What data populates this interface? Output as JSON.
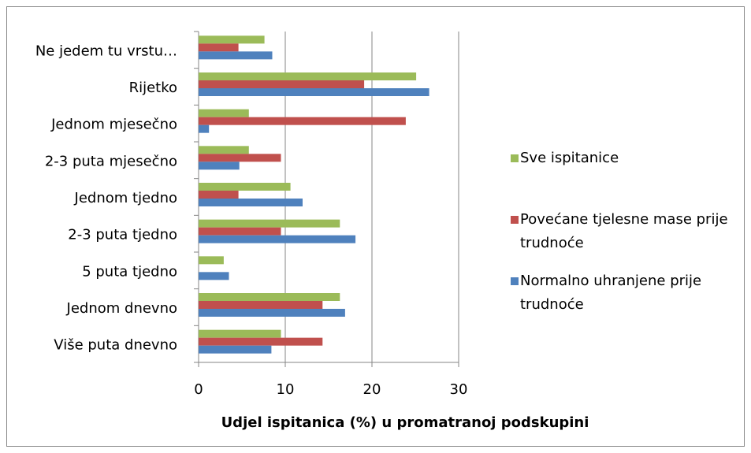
{
  "chart_data": {
    "type": "bar",
    "orientation": "horizontal",
    "xlabel": "Udjel ispitanica (%) u promatranoj podskupini",
    "categories": [
      "Ne jedem tu vrstu…",
      "Rijetko",
      "Jednom mjesečno",
      "2-3 puta mjesečno",
      "Jednom tjedno",
      "2-3 puta tjedno",
      "5 puta tjedno",
      "Jednom dnevno",
      "Više puta dnevno"
    ],
    "series": [
      {
        "name": "Sve ispitanice",
        "color": "#9bbb59",
        "values": [
          7.6,
          25.1,
          5.8,
          5.8,
          10.6,
          16.3,
          2.9,
          16.3,
          9.5
        ]
      },
      {
        "name": "Povećane tjelesne mase prije trudnoće",
        "color": "#c0504d",
        "values": [
          4.6,
          19.1,
          23.9,
          9.5,
          4.6,
          9.5,
          0,
          14.3,
          14.3
        ]
      },
      {
        "name": "Normalno uhranjene prije trudnoće",
        "color": "#4f81bd",
        "values": [
          8.5,
          26.6,
          1.2,
          4.7,
          12.0,
          18.1,
          3.5,
          16.9,
          8.4
        ]
      }
    ],
    "xlim": [
      0,
      30
    ],
    "xticks": [
      0,
      10,
      20,
      30
    ],
    "grid": true,
    "legend": "right"
  }
}
